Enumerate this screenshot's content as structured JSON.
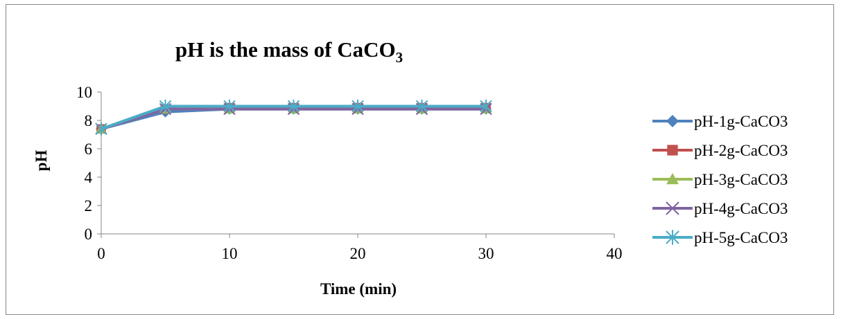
{
  "chart_data": {
    "type": "line",
    "title_main": "pH is the mass of CaCO",
    "title_subscript": "3",
    "xlabel": "Time (min)",
    "ylabel": "pH",
    "xlim": [
      0,
      40
    ],
    "ylim": [
      0,
      10
    ],
    "x_ticks": [
      0,
      10,
      20,
      30,
      40
    ],
    "y_ticks": [
      0,
      2,
      4,
      6,
      8,
      10
    ],
    "grid": false,
    "legend_position": "right",
    "x": [
      0,
      5,
      10,
      15,
      20,
      25,
      30
    ],
    "series": [
      {
        "name": "pH-1g-CaCO3",
        "color": "#4F81BD",
        "marker": "diamond",
        "values": [
          7.4,
          8.6,
          8.8,
          8.8,
          8.8,
          8.8,
          8.8
        ]
      },
      {
        "name": "pH-2g-CaCO3",
        "color": "#C0504D",
        "marker": "square",
        "values": [
          7.4,
          8.8,
          8.9,
          8.9,
          8.9,
          8.9,
          8.9
        ]
      },
      {
        "name": "pH-3g-CaCO3",
        "color": "#9BBB59",
        "marker": "triangle",
        "values": [
          7.4,
          8.8,
          8.8,
          8.8,
          8.8,
          8.8,
          8.8
        ]
      },
      {
        "name": "pH-4g-CaCO3",
        "color": "#8064A2",
        "marker": "x",
        "values": [
          7.4,
          8.8,
          8.8,
          8.8,
          8.8,
          8.8,
          8.8
        ]
      },
      {
        "name": "pH-5g-CaCO3",
        "color": "#4BACC6",
        "marker": "star",
        "values": [
          7.4,
          9.0,
          9.0,
          9.0,
          9.0,
          9.0,
          9.0
        ]
      }
    ]
  }
}
